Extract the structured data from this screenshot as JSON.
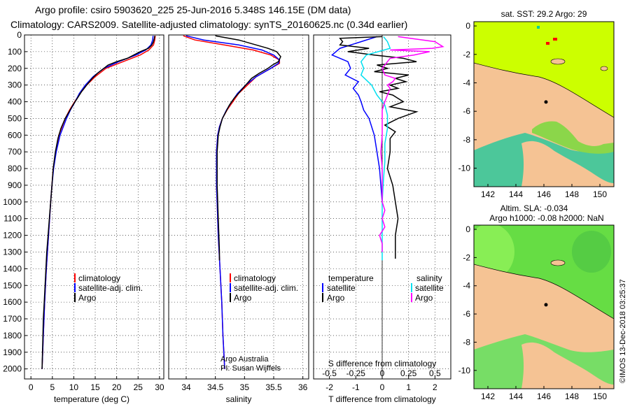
{
  "titles": {
    "line1": "Argo profile: csiro 5903620_225 25-Jun-2016 5.348S 146.15E (DM data)",
    "line2": "Climatology: CARS2009. Satellite-adjusted climatology: synTS_20160625.nc (0.34d earlier)"
  },
  "watermark": "©IMOS 13-Dec-2018 03:25:37",
  "credit": {
    "line1": "Argo Australia",
    "line2": "PI: Susan Wijffels"
  },
  "colors": {
    "climatology": "#ff0000",
    "satellite": "#0000ff",
    "argo": "#000000",
    "salinity_satellite": "#00e0f0",
    "salinity_argo": "#ff00ff",
    "land": "#f5c394"
  },
  "depth_axis": {
    "ticks": [
      "0",
      "100",
      "200",
      "300",
      "400",
      "500",
      "600",
      "700",
      "800",
      "900",
      "1000",
      "1100",
      "1200",
      "1300",
      "1400",
      "1500",
      "1600",
      "1700",
      "1800",
      "1900",
      "2000"
    ],
    "range": [
      0,
      2060
    ]
  },
  "legend_temp": {
    "climatology": "climatology",
    "satellite": "satellite-adj. clim.",
    "argo": "Argo"
  },
  "legend_salt": {
    "climatology": "climatology",
    "satellite": "satellite-adj. clim.",
    "argo": "Argo"
  },
  "legend_diff": {
    "temperature_header": "temperature",
    "salinity_header": "salinity",
    "t_satellite": "satellite",
    "t_argo": "Argo",
    "s_satellite": "satellite",
    "s_argo": "Argo"
  },
  "chart_data": [
    {
      "type": "line",
      "title": "",
      "xlabel": "temperature (deg C)",
      "ylabel": "depth",
      "xlim": [
        -1.5,
        31
      ],
      "ylim": [
        2060,
        -20
      ],
      "xticks": [
        "0",
        "5",
        "10",
        "15",
        "20",
        "25",
        "30"
      ],
      "xtick_values": [
        0,
        5,
        10,
        15,
        20,
        25,
        30
      ],
      "series": [
        {
          "name": "climatology",
          "depth": [
            5,
            30,
            60,
            90,
            120,
            160,
            200,
            250,
            300,
            350,
            400,
            450,
            500,
            600,
            700,
            800,
            900,
            1000,
            1200,
            1400,
            1600,
            1800,
            2000
          ],
          "values": [
            29.0,
            28.9,
            28.6,
            27.5,
            25.5,
            21.5,
            17.5,
            15.0,
            13.0,
            11.5,
            10.2,
            9.0,
            8.0,
            6.5,
            5.8,
            5.2,
            4.9,
            4.6,
            4.1,
            3.6,
            3.2,
            2.9,
            2.6
          ]
        },
        {
          "name": "satellite-adj. clim.",
          "depth": [
            5,
            30,
            60,
            90,
            120,
            160,
            200,
            250,
            300,
            350,
            400,
            450,
            500,
            600,
            700,
            800,
            900,
            1000,
            1200,
            1400,
            1600,
            1800,
            2000
          ],
          "values": [
            28.5,
            28.4,
            28.0,
            26.8,
            24.5,
            20.5,
            17.0,
            14.5,
            12.7,
            11.3,
            10.3,
            9.2,
            8.3,
            6.8,
            5.9,
            5.3,
            4.9,
            4.6,
            4.1,
            3.6,
            3.2,
            2.9,
            2.6
          ]
        },
        {
          "name": "Argo",
          "depth": [
            5,
            20,
            40,
            60,
            80,
            100,
            120,
            140,
            160,
            180,
            200,
            230,
            260,
            300,
            340,
            380,
            420,
            460,
            500,
            560,
            620,
            700,
            800,
            900,
            1000,
            1100,
            1200,
            1300,
            1400,
            1500,
            1600,
            1700,
            1800,
            1900,
            2000
          ],
          "values": [
            28.9,
            28.8,
            28.6,
            28.2,
            27.4,
            25.5,
            24.0,
            22.5,
            20.0,
            18.0,
            17.0,
            15.5,
            14.3,
            13.0,
            11.8,
            10.8,
            9.8,
            8.9,
            8.0,
            7.0,
            6.3,
            5.7,
            5.2,
            4.9,
            4.6,
            4.3,
            4.0,
            3.7,
            3.5,
            3.3,
            3.1,
            2.9,
            2.8,
            2.7,
            2.6
          ]
        }
      ]
    },
    {
      "type": "line",
      "title": "",
      "xlabel": "salinity",
      "ylabel": "depth",
      "xlim": [
        33.7,
        36.1
      ],
      "ylim": [
        2060,
        -20
      ],
      "xticks": [
        "34",
        "34.5",
        "35",
        "35.5",
        "36"
      ],
      "xtick_values": [
        34,
        34.5,
        35,
        35.5,
        36
      ],
      "series": [
        {
          "name": "climatology",
          "depth": [
            5,
            30,
            60,
            90,
            120,
            150,
            170,
            200,
            250,
            300,
            350,
            400,
            450,
            500,
            550,
            600,
            700,
            800,
            900,
            1000,
            1200,
            1400,
            1600,
            1800,
            2000
          ],
          "values": [
            33.95,
            34.15,
            34.65,
            35.15,
            35.45,
            35.6,
            35.6,
            35.45,
            35.2,
            35.05,
            34.9,
            34.8,
            34.7,
            34.62,
            34.57,
            34.54,
            34.52,
            34.52,
            34.52,
            34.53,
            34.55,
            34.58,
            34.61,
            34.63,
            34.66
          ]
        },
        {
          "name": "satellite-adj. clim.",
          "depth": [
            5,
            30,
            60,
            90,
            120,
            150,
            170,
            200,
            250,
            300,
            350,
            400,
            450,
            500,
            550,
            600,
            700,
            800,
            900,
            1000,
            1200,
            1400,
            1600,
            1800,
            2000
          ],
          "values": [
            34.0,
            34.3,
            34.9,
            35.3,
            35.5,
            35.6,
            35.58,
            35.45,
            35.2,
            35.02,
            34.88,
            34.78,
            34.69,
            34.62,
            34.57,
            34.54,
            34.52,
            34.52,
            34.52,
            34.53,
            34.55,
            34.58,
            34.61,
            34.63,
            34.66
          ]
        },
        {
          "name": "Argo",
          "depth": [
            5,
            30,
            60,
            80,
            100,
            130,
            160,
            180,
            200,
            230,
            260,
            300,
            340,
            380,
            420,
            460,
            500,
            550,
            600,
            700,
            800,
            900,
            1000,
            1100,
            1200,
            1300,
            1350
          ],
          "values": [
            34.5,
            34.9,
            35.2,
            35.4,
            35.55,
            35.62,
            35.58,
            35.48,
            35.4,
            35.25,
            35.12,
            35.02,
            34.92,
            34.82,
            34.74,
            34.68,
            34.62,
            34.58,
            34.55,
            34.53,
            34.53,
            34.53,
            34.54,
            34.55,
            34.56,
            34.57,
            34.57
          ]
        }
      ]
    },
    {
      "type": "line",
      "title": "",
      "xlabel": "T difference from climatology",
      "xlabel_top": "S difference from climatology",
      "ylabel": "depth",
      "xlim": [
        -2.6,
        2.6
      ],
      "ylim": [
        2060,
        -20
      ],
      "xticks": [
        "-2",
        "-1",
        "0",
        "1",
        "2"
      ],
      "xtick_values": [
        -2,
        -1,
        0,
        1,
        2
      ],
      "xticks_top": [
        "-0.5",
        "-0.25",
        "0",
        "0.25",
        "0.5"
      ],
      "xtick_top_values": [
        -2,
        -1,
        0,
        1,
        2
      ],
      "series": [
        {
          "name": "T satellite",
          "depth": [
            10,
            40,
            80,
            120,
            160,
            200,
            240,
            280,
            320,
            360,
            400,
            450,
            500,
            600,
            700,
            800,
            900,
            1000
          ],
          "values": [
            -0.2,
            -0.8,
            -1.6,
            -1.9,
            -1.3,
            -1.2,
            -1.4,
            -0.9,
            -1.1,
            -0.9,
            -0.8,
            -0.7,
            -0.5,
            -0.3,
            -0.2,
            -0.1,
            -0.05,
            0
          ]
        },
        {
          "name": "T Argo",
          "depth": [
            10,
            20,
            40,
            60,
            80,
            100,
            120,
            140,
            160,
            180,
            200,
            220,
            240,
            260,
            280,
            300,
            320,
            340,
            360,
            380,
            400,
            430,
            460,
            500,
            540,
            580,
            620,
            700,
            800,
            900,
            1000,
            1100,
            1200,
            1300,
            1340
          ],
          "values": [
            0,
            -1.6,
            -1.5,
            -1.6,
            -0.5,
            -1.3,
            -0.3,
            0.8,
            1.3,
            -0.2,
            0.2,
            -0.3,
            1.0,
            0.5,
            0.9,
            0.3,
            0.6,
            -0.1,
            0.4,
            0.6,
            0.8,
            0.3,
            1.3,
            0.6,
            0.1,
            0.5,
            0.3,
            0.3,
            0.2,
            0.4,
            0.5,
            0.6,
            0.5,
            0.5,
            0.5
          ]
        },
        {
          "name": "S satellite",
          "depth": [
            10,
            40,
            80,
            120,
            160,
            200,
            240,
            300,
            360,
            420,
            480,
            560,
            650,
            760,
            860,
            1000,
            1100,
            1200,
            1300,
            1350
          ],
          "values": [
            0.05,
            0.2,
            0.3,
            -0.6,
            -0.8,
            -0.7,
            -0.8,
            -0.4,
            -0.2,
            0.1,
            0.2,
            0.2,
            0.1,
            0.1,
            0.05,
            0.0,
            0.0,
            0.0,
            0.0,
            0.0
          ]
        },
        {
          "name": "S Argo",
          "depth": [
            10,
            40,
            70,
            80,
            90,
            100,
            120,
            140,
            160,
            200,
            240,
            260,
            280,
            300,
            320,
            360,
            400,
            450,
            500,
            600,
            700,
            800,
            900,
            1000,
            1050,
            1100,
            1150,
            1200,
            1250,
            1300
          ],
          "values": [
            0.6,
            2.0,
            2.3,
            1.9,
            0.3,
            1.8,
            1.2,
            0.3,
            0.2,
            0.0,
            0.1,
            0.5,
            0.4,
            0.2,
            0.3,
            0.2,
            0.1,
            0.0,
            0.0,
            0.0,
            -0.05,
            0.0,
            0.0,
            0.0,
            0.1,
            0.0,
            0.1,
            -0.1,
            0.0,
            0.0
          ]
        }
      ]
    },
    {
      "type": "heatmap",
      "title": "sat. SST: 29.2 Argo: 29",
      "xticks": [
        "142",
        "144",
        "146",
        "148",
        "150"
      ],
      "xtick_values": [
        142,
        144,
        146,
        148,
        150
      ],
      "yticks": [
        "0",
        "-2",
        "-4",
        "-6",
        "-8",
        "-10"
      ],
      "ytick_values": [
        0,
        -2,
        -4,
        -6,
        -8,
        -10
      ],
      "xlim": [
        141,
        151
      ],
      "ylim": [
        -11.3,
        0.3
      ],
      "argo_position": [
        146.15,
        -5.348
      ]
    },
    {
      "type": "heatmap",
      "title": "Altim. SLA: -0.034",
      "subtitle": "Argo h1000: -0.08 h2000: NaN",
      "xticks": [
        "142",
        "144",
        "146",
        "148",
        "150"
      ],
      "xtick_values": [
        142,
        144,
        146,
        148,
        150
      ],
      "yticks": [
        "0",
        "-2",
        "-4",
        "-6",
        "-8",
        "-10"
      ],
      "ytick_values": [
        0,
        -2,
        -4,
        -6,
        -8,
        -10
      ],
      "xlim": [
        141,
        151
      ],
      "ylim": [
        -11.3,
        0.3
      ],
      "argo_position": [
        146.15,
        -5.348
      ]
    }
  ]
}
